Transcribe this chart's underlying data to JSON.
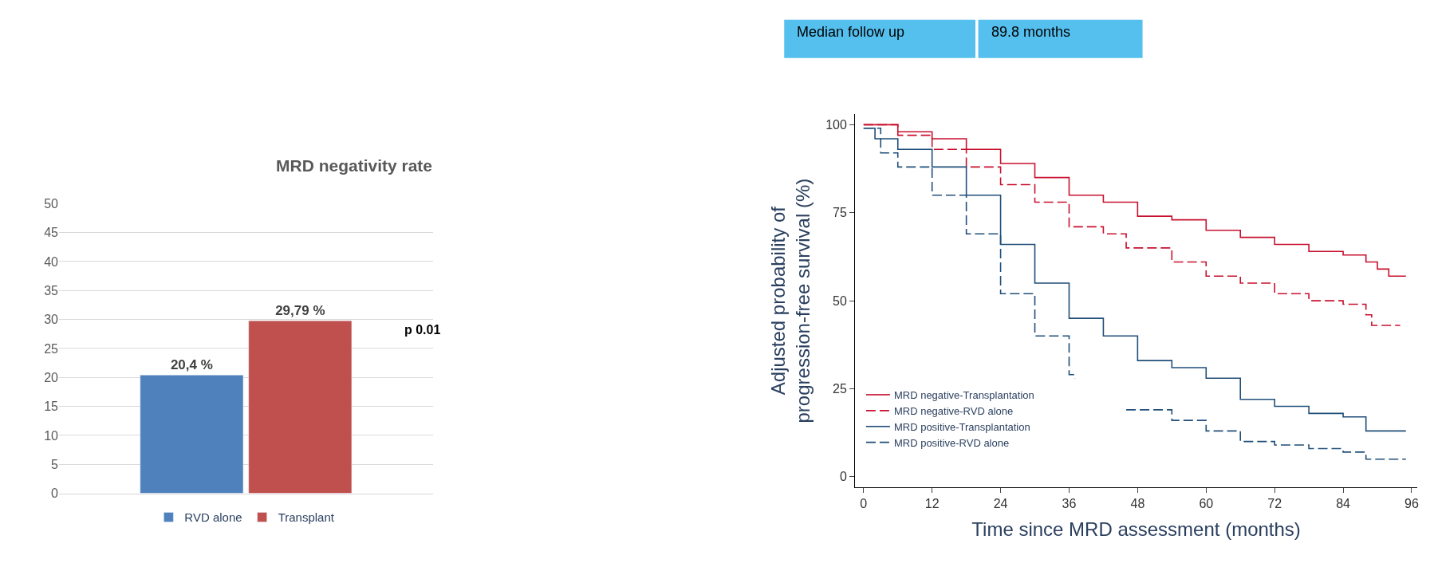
{
  "chart_data": [
    {
      "type": "bar",
      "title": "MRD negativity rate",
      "categories": [
        null
      ],
      "series": [
        {
          "name": "RVD alone",
          "color": "#4f81bd",
          "values": [
            20.4
          ],
          "value_labels": [
            "20,4 %"
          ]
        },
        {
          "name": "Transplant",
          "color": "#c0504d",
          "values": [
            29.79
          ],
          "value_labels": [
            "29,79 %"
          ]
        }
      ],
      "ylim": [
        0,
        50
      ],
      "yticks": [
        0,
        5,
        10,
        15,
        20,
        25,
        30,
        35,
        40,
        45,
        50
      ],
      "grid": "y",
      "legend": "bottom",
      "annotations": [
        "p 0.01"
      ]
    },
    {
      "type": "step",
      "xlabel": "Time since MRD assessment (months)",
      "ylabel": "Adjusted probability of\nprogression-free survival (%)",
      "series": [
        {
          "name": "MRD negative-Transplantation",
          "color": "#c8102e",
          "line_style": "solid",
          "x": [
            0,
            6,
            12,
            18,
            24,
            30,
            36,
            42,
            48,
            54,
            60,
            66,
            72,
            78,
            84,
            88,
            90,
            92,
            95
          ],
          "values": [
            100,
            98,
            96,
            93,
            89,
            85,
            80,
            78,
            74,
            73,
            70,
            68,
            66,
            64,
            63,
            61,
            59,
            57,
            57
          ]
        },
        {
          "name": "MRD negative-RVD alone",
          "color": "#c8102e",
          "line_style": "dashed",
          "x": [
            0,
            6,
            12,
            18,
            24,
            30,
            36,
            42,
            46,
            54,
            60,
            66,
            72,
            78,
            84,
            88,
            89,
            94
          ],
          "values": [
            100,
            97,
            93,
            88,
            83,
            78,
            71,
            69,
            65,
            61,
            57,
            55,
            52,
            50,
            49,
            46,
            43,
            43
          ]
        },
        {
          "name": "MRD positive-Transplantation",
          "color": "#1f4e79",
          "line_style": "solid",
          "x": [
            0,
            2,
            6,
            12,
            18,
            24,
            30,
            36,
            42,
            48,
            54,
            60,
            66,
            72,
            78,
            84,
            88,
            95
          ],
          "values": [
            99,
            96,
            93,
            88,
            80,
            66,
            55,
            45,
            40,
            33,
            31,
            28,
            22,
            20,
            18,
            17,
            13,
            13
          ]
        },
        {
          "name": "MRD positive-RVD alone",
          "color": "#1f4e79",
          "line_style": "dashed",
          "x": [
            0,
            3,
            6,
            12,
            18,
            24,
            30,
            36,
            37,
            42,
            46,
            54,
            60,
            66,
            72,
            78,
            84,
            88,
            95
          ],
          "values": [
            99,
            92,
            88,
            80,
            69,
            52,
            40,
            29,
            28,
            null,
            19,
            16,
            13,
            10,
            9,
            8,
            7,
            5,
            5
          ]
        }
      ],
      "xlim": [
        -1.5,
        97
      ],
      "xticks": [
        0,
        12,
        24,
        36,
        48,
        60,
        72,
        84,
        96
      ],
      "ylim": [
        -3,
        103
      ],
      "yticks": [
        0,
        25,
        50,
        75,
        100
      ],
      "grid": false,
      "legend": "bottom left",
      "annotations": [
        "Median follow up",
        "89.8 months"
      ]
    }
  ]
}
